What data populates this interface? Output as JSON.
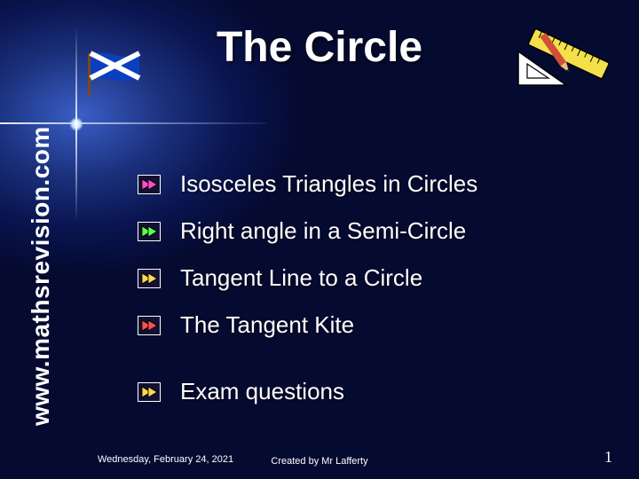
{
  "title": "The Circle",
  "side_label": "www.mathsrevision.com",
  "topics": [
    {
      "label": "Isosceles Triangles in Circles",
      "arrow_fill": "#ff4fc3",
      "gap_before": false
    },
    {
      "label": "Right angle in a Semi-Circle",
      "arrow_fill": "#5cff4f",
      "gap_before": false
    },
    {
      "label": "Tangent Line to a Circle",
      "arrow_fill": "#ffd84f",
      "gap_before": false
    },
    {
      "label": "The Tangent Kite",
      "arrow_fill": "#ff4f4f",
      "gap_before": false
    },
    {
      "label": "Exam questions",
      "arrow_fill": "#ffd84f",
      "gap_before": true
    }
  ],
  "bullet": {
    "box_fill": "#111133",
    "box_stroke": "#ffffff",
    "arrow_stroke": "#000000"
  },
  "flag": {
    "cloth": "#0a3fbf",
    "cross": "#ffffff",
    "pole": "#7a4a1a"
  },
  "tools": {
    "ruler_fill": "#f4e04a",
    "ruler_stroke": "#000000",
    "tri_fill": "#ffffff",
    "tri_stroke": "#000000",
    "pencil_body": "#d14f3a",
    "pencil_tip": "#e8c07a",
    "pencil_lead": "#222222"
  },
  "footer": {
    "date": "Wednesday, February 24, 2021",
    "credit": "Created by Mr Lafferty",
    "page": "1"
  },
  "colors": {
    "text": "#ffffff",
    "background_center": "#1a2f7a",
    "background_edge": "#050a30"
  },
  "typography": {
    "title_fontsize": 48,
    "topic_fontsize": 26,
    "side_fontsize": 28,
    "footer_fontsize": 11,
    "title_font": "Comic Sans MS",
    "footer_font": "Arial"
  }
}
